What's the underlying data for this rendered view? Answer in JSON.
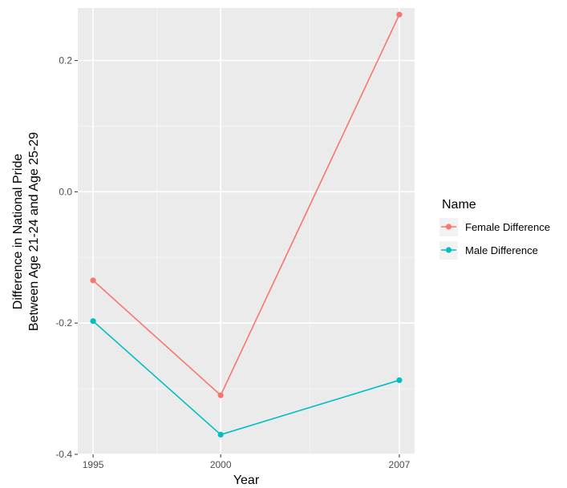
{
  "chart_data": {
    "type": "line",
    "title": "",
    "xlabel": "Year",
    "ylabel_lines": [
      "Difference in National Pride",
      "Between Age 21-24 and Age 25-29"
    ],
    "categories": [
      "1995",
      "2000",
      "2007"
    ],
    "x": [
      1995,
      2000,
      2007
    ],
    "ylim": [
      -0.4,
      0.28
    ],
    "yticks": [
      -0.4,
      -0.2,
      0.0,
      0.2
    ],
    "ytick_labels": [
      "-0.4",
      "-0.2",
      "0.0",
      "0.2"
    ],
    "grid": true,
    "legend": {
      "title": "Name",
      "position": "right"
    },
    "series": [
      {
        "name": "Female Difference",
        "color": "#F8766D",
        "values": [
          -0.135,
          -0.31,
          0.27
        ]
      },
      {
        "name": "Male Difference",
        "color": "#00BFC4",
        "values": [
          -0.197,
          -0.37,
          -0.287
        ]
      }
    ]
  }
}
